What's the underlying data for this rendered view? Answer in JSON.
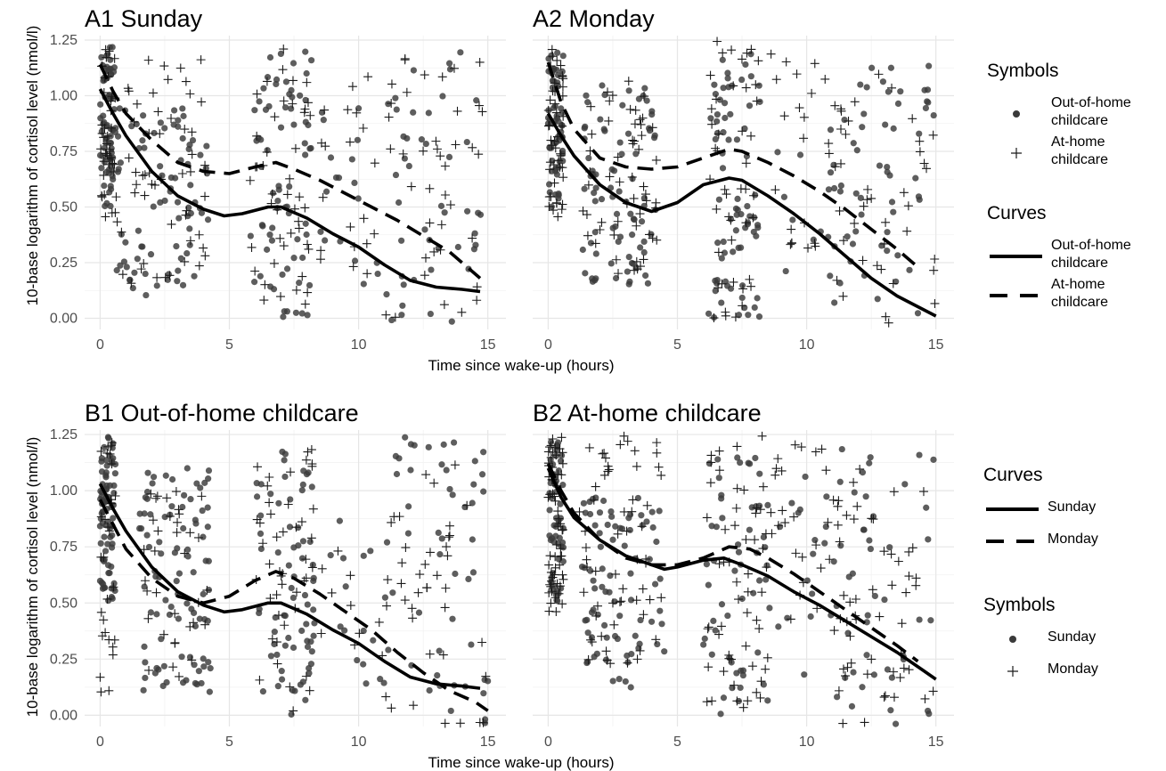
{
  "y_axis_label": "10-base logarithm of cortisol level (nmol/l)",
  "legends": {
    "top": {
      "symbols_title": "Symbols",
      "symbols": [
        {
          "label_lines": [
            "Out-of-home",
            "childcare"
          ],
          "marker": "circle"
        },
        {
          "label_lines": [
            "At-home",
            "childcare"
          ],
          "marker": "plus"
        }
      ],
      "curves_title": "Curves",
      "curves": [
        {
          "label_lines": [
            "Out-of-home",
            "childcare"
          ],
          "line": "solid"
        },
        {
          "label_lines": [
            "At-home",
            "childcare"
          ],
          "line": "dashed"
        }
      ]
    },
    "bottom": {
      "curves_title": "Curves",
      "curves": [
        {
          "label_lines": [
            "Sunday"
          ],
          "line": "solid"
        },
        {
          "label_lines": [
            "Monday"
          ],
          "line": "dashed"
        }
      ],
      "symbols_title": "Symbols",
      "symbols": [
        {
          "label_lines": [
            "Sunday"
          ],
          "marker": "circle"
        },
        {
          "label_lines": [
            "Monday"
          ],
          "marker": "plus"
        }
      ]
    }
  },
  "colors": {
    "point": "#3a3a3a",
    "curve": "#000000",
    "grid": "#e6e6e6"
  },
  "chart_data": [
    {
      "panel": "A1",
      "title": "A1  Sunday",
      "type": "scatter",
      "xlabel": "Time since wake-up (hours)",
      "xlim": [
        -0.6,
        15.7
      ],
      "ylim": [
        -0.05,
        1.27
      ],
      "xticks": [
        0,
        5,
        10,
        15
      ],
      "yticks": [
        0.0,
        0.25,
        0.5,
        0.75,
        1.0,
        1.25
      ],
      "curves": [
        {
          "name": "Out-of-home childcare",
          "style": "solid",
          "x": [
            0,
            0.5,
            1,
            2,
            3,
            4,
            4.8,
            5.5,
            6.5,
            7,
            8,
            9,
            10,
            11,
            12,
            13,
            14,
            14.7
          ],
          "y": [
            1.03,
            0.92,
            0.82,
            0.66,
            0.55,
            0.49,
            0.46,
            0.47,
            0.5,
            0.5,
            0.45,
            0.38,
            0.32,
            0.24,
            0.17,
            0.14,
            0.13,
            0.12
          ]
        },
        {
          "name": "At-home childcare",
          "style": "dashed",
          "x": [
            0,
            0.5,
            1,
            2,
            3,
            4,
            5,
            6,
            6.8,
            7.5,
            8.5,
            9.5,
            10.5,
            11.5,
            12.5,
            13.5,
            14.7
          ],
          "y": [
            1.14,
            1.02,
            0.92,
            0.8,
            0.7,
            0.66,
            0.65,
            0.68,
            0.7,
            0.67,
            0.62,
            0.56,
            0.5,
            0.44,
            0.37,
            0.3,
            0.18
          ]
        }
      ],
      "scatter_clusters": [
        {
          "marker": "circle",
          "x": [
            0,
            0.6
          ],
          "y": [
            0.5,
            1.22
          ],
          "n": 70
        },
        {
          "marker": "plus",
          "x": [
            0,
            0.6
          ],
          "y": [
            0.45,
            1.22
          ],
          "n": 40
        },
        {
          "marker": "circle",
          "x": [
            0.6,
            4.2
          ],
          "y": [
            0.1,
            0.95
          ],
          "n": 80
        },
        {
          "marker": "plus",
          "x": [
            0.6,
            4.2
          ],
          "y": [
            0.15,
            1.2
          ],
          "n": 55
        },
        {
          "marker": "circle",
          "x": [
            5.8,
            8.2
          ],
          "y": [
            0.0,
            1.2
          ],
          "n": 70
        },
        {
          "marker": "plus",
          "x": [
            5.8,
            8.2
          ],
          "y": [
            0.05,
            1.25
          ],
          "n": 45
        },
        {
          "marker": "circle",
          "x": [
            8.5,
            11
          ],
          "y": [
            0.1,
            1.0
          ],
          "n": 18
        },
        {
          "marker": "plus",
          "x": [
            8.5,
            11
          ],
          "y": [
            0.2,
            1.2
          ],
          "n": 20
        },
        {
          "marker": "circle",
          "x": [
            11,
            14.8
          ],
          "y": [
            -0.04,
            1.25
          ],
          "n": 45
        },
        {
          "marker": "plus",
          "x": [
            11,
            14.8
          ],
          "y": [
            -0.04,
            1.2
          ],
          "n": 40
        }
      ]
    },
    {
      "panel": "A2",
      "title": "A2  Monday",
      "type": "scatter",
      "xlabel": "Time since wake-up (hours)",
      "xlim": [
        -0.6,
        15.7
      ],
      "ylim": [
        -0.05,
        1.27
      ],
      "xticks": [
        0,
        5,
        10,
        15
      ],
      "yticks": [
        0.0,
        0.25,
        0.5,
        0.75,
        1.0,
        1.25
      ],
      "curves": [
        {
          "name": "Out-of-home childcare",
          "style": "solid",
          "x": [
            0,
            0.5,
            1,
            2,
            3,
            4,
            5,
            6,
            7,
            7.5,
            8.5,
            9.5,
            10.5,
            11.5,
            12.5,
            13.5,
            14.5,
            15
          ],
          "y": [
            0.92,
            0.82,
            0.73,
            0.6,
            0.52,
            0.48,
            0.52,
            0.6,
            0.63,
            0.62,
            0.55,
            0.47,
            0.38,
            0.28,
            0.18,
            0.1,
            0.04,
            0.01
          ]
        },
        {
          "name": "At-home childcare",
          "style": "dashed",
          "x": [
            0,
            0.5,
            1,
            2,
            3,
            4,
            5,
            6,
            7,
            7.5,
            8.5,
            9.5,
            10.5,
            11.5,
            12.5,
            13.5,
            14.2
          ],
          "y": [
            1.15,
            0.97,
            0.85,
            0.72,
            0.68,
            0.67,
            0.68,
            0.72,
            0.76,
            0.75,
            0.7,
            0.64,
            0.57,
            0.49,
            0.4,
            0.31,
            0.24
          ]
        }
      ],
      "scatter_clusters": [
        {
          "marker": "circle",
          "x": [
            0,
            0.6
          ],
          "y": [
            0.5,
            1.22
          ],
          "n": 60
        },
        {
          "marker": "plus",
          "x": [
            0,
            0.6
          ],
          "y": [
            0.45,
            1.24
          ],
          "n": 45
        },
        {
          "marker": "circle",
          "x": [
            1.3,
            4.2
          ],
          "y": [
            0.15,
            1.05
          ],
          "n": 80
        },
        {
          "marker": "plus",
          "x": [
            1.3,
            4.2
          ],
          "y": [
            0.2,
            1.1
          ],
          "n": 55
        },
        {
          "marker": "circle",
          "x": [
            6.2,
            8.2
          ],
          "y": [
            0.0,
            1.2
          ],
          "n": 75
        },
        {
          "marker": "plus",
          "x": [
            6.2,
            8.2
          ],
          "y": [
            0.0,
            1.25
          ],
          "n": 45
        },
        {
          "marker": "circle",
          "x": [
            8.5,
            11
          ],
          "y": [
            0.1,
            1.0
          ],
          "n": 12
        },
        {
          "marker": "plus",
          "x": [
            8.5,
            11
          ],
          "y": [
            0.3,
            1.2
          ],
          "n": 22
        },
        {
          "marker": "circle",
          "x": [
            11,
            15
          ],
          "y": [
            -0.04,
            1.2
          ],
          "n": 55
        },
        {
          "marker": "plus",
          "x": [
            11,
            15
          ],
          "y": [
            -0.04,
            1.1
          ],
          "n": 40
        }
      ]
    },
    {
      "panel": "B1",
      "title": "B1  Out-of-home childcare",
      "type": "scatter",
      "xlabel": "Time since wake-up (hours)",
      "xlim": [
        -0.6,
        15.7
      ],
      "ylim": [
        -0.05,
        1.27
      ],
      "xticks": [
        0,
        5,
        10,
        15
      ],
      "yticks": [
        0.0,
        0.25,
        0.5,
        0.75,
        1.0,
        1.25
      ],
      "curves": [
        {
          "name": "Sunday",
          "style": "solid",
          "x": [
            0,
            0.5,
            1,
            2,
            3,
            4,
            4.8,
            5.5,
            6.5,
            7,
            8,
            9,
            10,
            11,
            12,
            13,
            14,
            14.7
          ],
          "y": [
            1.03,
            0.92,
            0.82,
            0.66,
            0.55,
            0.49,
            0.46,
            0.47,
            0.5,
            0.5,
            0.45,
            0.38,
            0.32,
            0.24,
            0.17,
            0.14,
            0.13,
            0.12
          ]
        },
        {
          "name": "Monday",
          "style": "dashed",
          "x": [
            0,
            0.5,
            1,
            2,
            3,
            4,
            5,
            6,
            6.8,
            7.5,
            8.5,
            9.5,
            10.5,
            11.5,
            12.5,
            13.5,
            14.5,
            15
          ],
          "y": [
            0.96,
            0.85,
            0.74,
            0.61,
            0.53,
            0.5,
            0.53,
            0.6,
            0.64,
            0.61,
            0.54,
            0.46,
            0.38,
            0.28,
            0.19,
            0.11,
            0.06,
            0.02
          ]
        }
      ],
      "scatter_clusters": [
        {
          "marker": "circle",
          "x": [
            0,
            0.6
          ],
          "y": [
            0.5,
            1.24
          ],
          "n": 80
        },
        {
          "marker": "plus",
          "x": [
            0,
            0.6
          ],
          "y": [
            0.1,
            1.22
          ],
          "n": 30
        },
        {
          "marker": "circle",
          "x": [
            1.5,
            4.3
          ],
          "y": [
            0.1,
            1.1
          ],
          "n": 90
        },
        {
          "marker": "plus",
          "x": [
            1.5,
            4.3
          ],
          "y": [
            0.1,
            1.0
          ],
          "n": 35
        },
        {
          "marker": "circle",
          "x": [
            6.0,
            8.3
          ],
          "y": [
            0.0,
            1.2
          ],
          "n": 70
        },
        {
          "marker": "plus",
          "x": [
            6.0,
            8.3
          ],
          "y": [
            0.0,
            1.22
          ],
          "n": 45
        },
        {
          "marker": "circle",
          "x": [
            8.5,
            11
          ],
          "y": [
            0.1,
            0.9
          ],
          "n": 15
        },
        {
          "marker": "plus",
          "x": [
            8.5,
            11
          ],
          "y": [
            0.2,
            0.8
          ],
          "n": 10
        },
        {
          "marker": "circle",
          "x": [
            11,
            15
          ],
          "y": [
            -0.04,
            1.25
          ],
          "n": 50
        },
        {
          "marker": "plus",
          "x": [
            11,
            15
          ],
          "y": [
            -0.04,
            1.2
          ],
          "n": 40
        }
      ]
    },
    {
      "panel": "B2",
      "title": "B2  At-home childcare",
      "type": "scatter",
      "xlabel": "Time since wake-up (hours)",
      "xlim": [
        -0.6,
        15.7
      ],
      "ylim": [
        -0.05,
        1.27
      ],
      "xticks": [
        0,
        5,
        10,
        15
      ],
      "yticks": [
        0.0,
        0.25,
        0.5,
        0.75,
        1.0,
        1.25
      ],
      "curves": [
        {
          "name": "Sunday",
          "style": "solid",
          "x": [
            0,
            0.5,
            1,
            2,
            3,
            4,
            4.5,
            5,
            6,
            6.8,
            7.5,
            8.5,
            9.5,
            10.5,
            11.5,
            12.5,
            13.5,
            14.5,
            15
          ],
          "y": [
            1.1,
            0.97,
            0.88,
            0.78,
            0.71,
            0.67,
            0.65,
            0.66,
            0.69,
            0.7,
            0.67,
            0.62,
            0.55,
            0.49,
            0.42,
            0.35,
            0.28,
            0.2,
            0.16
          ]
        },
        {
          "name": "Monday",
          "style": "dashed",
          "x": [
            0,
            0.5,
            1,
            2,
            3,
            4,
            5,
            6,
            7,
            7.8,
            8.5,
            9.5,
            10.5,
            11.5,
            12.5,
            13.5,
            14.3
          ],
          "y": [
            1.12,
            1.0,
            0.9,
            0.78,
            0.7,
            0.67,
            0.67,
            0.7,
            0.75,
            0.74,
            0.7,
            0.63,
            0.55,
            0.47,
            0.39,
            0.31,
            0.24
          ]
        }
      ],
      "scatter_clusters": [
        {
          "marker": "circle",
          "x": [
            0,
            0.6
          ],
          "y": [
            0.5,
            1.22
          ],
          "n": 55
        },
        {
          "marker": "plus",
          "x": [
            0,
            0.6
          ],
          "y": [
            0.45,
            1.24
          ],
          "n": 60
        },
        {
          "marker": "circle",
          "x": [
            1.2,
            4.5
          ],
          "y": [
            0.12,
            1.0
          ],
          "n": 80
        },
        {
          "marker": "plus",
          "x": [
            1.2,
            4.5
          ],
          "y": [
            0.2,
            1.25
          ],
          "n": 60
        },
        {
          "marker": "circle",
          "x": [
            6.0,
            8.5
          ],
          "y": [
            0.0,
            1.15
          ],
          "n": 55
        },
        {
          "marker": "plus",
          "x": [
            6.0,
            8.5
          ],
          "y": [
            0.0,
            1.25
          ],
          "n": 55
        },
        {
          "marker": "circle",
          "x": [
            8.5,
            11
          ],
          "y": [
            0.15,
            1.2
          ],
          "n": 18
        },
        {
          "marker": "plus",
          "x": [
            8.5,
            11
          ],
          "y": [
            0.3,
            1.22
          ],
          "n": 25
        },
        {
          "marker": "circle",
          "x": [
            11,
            15
          ],
          "y": [
            -0.04,
            1.22
          ],
          "n": 45
        },
        {
          "marker": "plus",
          "x": [
            11,
            15
          ],
          "y": [
            -0.04,
            1.1
          ],
          "n": 55
        }
      ]
    }
  ]
}
